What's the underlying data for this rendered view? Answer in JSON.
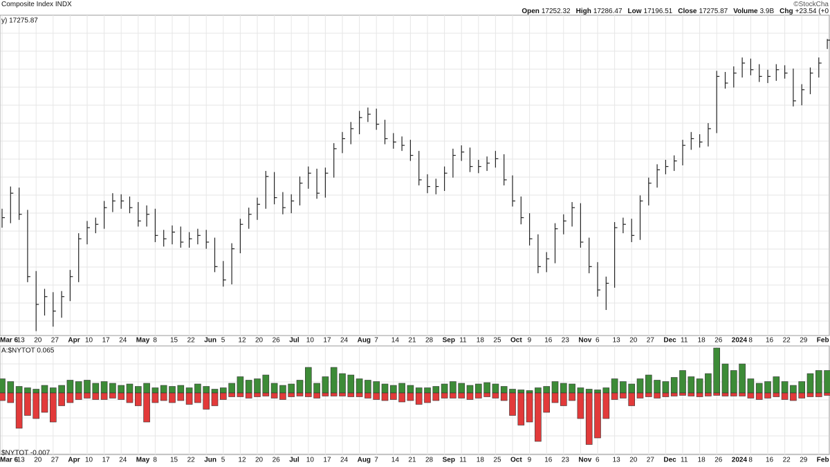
{
  "header": {
    "title": "Composite Index INDX",
    "credit": "©StockCha",
    "stats": [
      {
        "label": "Open",
        "value": "17252.32"
      },
      {
        "label": "High",
        "value": "17286.47"
      },
      {
        "label": "Low",
        "value": "17196.51"
      },
      {
        "label": "Close",
        "value": "17275.87"
      },
      {
        "label": "Volume",
        "value": "3.9B"
      },
      {
        "label": "Chg",
        "value": "+23.54 (+0"
      }
    ]
  },
  "chart_data": [
    {
      "type": "hlc",
      "label": "y) 17275.87",
      "color": "#222222",
      "ylim": [
        14620,
        17500
      ],
      "grid": true,
      "categories": [
        "Mar 6",
        null,
        "13",
        null,
        "20",
        null,
        "27",
        null,
        "Apr",
        null,
        "10",
        null,
        "17",
        null,
        "24",
        null,
        "May",
        null,
        "8",
        null,
        "15",
        null,
        "22",
        null,
        "Jun",
        null,
        "5",
        null,
        "12",
        null,
        "20",
        null,
        "26",
        null,
        "Jul",
        null,
        "10",
        null,
        "17",
        null,
        "24",
        null,
        "Aug",
        null,
        "7",
        null,
        "14",
        null,
        "21",
        null,
        "28",
        null,
        "Sep",
        null,
        "11",
        null,
        "18",
        null,
        "25",
        null,
        "Oct",
        null,
        "9",
        null,
        "16",
        null,
        "23",
        null,
        "Nov",
        null,
        "6",
        null,
        "13",
        null,
        "20",
        null,
        "27",
        null,
        "Dec",
        null,
        "11",
        null,
        "18",
        null,
        "26",
        null,
        "2024",
        null,
        "8",
        null,
        "16",
        null,
        "22",
        null,
        "29",
        null,
        "Feb",
        null
      ],
      "high": [
        15760,
        15960,
        15950,
        15750,
        15200,
        15040,
        15010,
        15020,
        15210,
        15540,
        15650,
        15680,
        15830,
        15900,
        15890,
        15870,
        15820,
        15790,
        15760,
        15570,
        15610,
        15600,
        15550,
        15580,
        15570,
        15500,
        15290,
        15450,
        15670,
        15770,
        15860,
        16100,
        16090,
        15910,
        15890,
        16050,
        16140,
        16120,
        16130,
        16350,
        16450,
        16540,
        16640,
        16670,
        16660,
        16560,
        16440,
        16410,
        16380,
        16280,
        16070,
        16030,
        16140,
        16300,
        16330,
        16310,
        16200,
        16230,
        16280,
        16250,
        16060,
        15870,
        15720,
        15530,
        15370,
        15630,
        15710,
        15820,
        15810,
        15500,
        15280,
        15150,
        15640,
        15680,
        15670,
        15880,
        16040,
        16160,
        16200,
        16240,
        16380,
        16450,
        16430,
        16530,
        17000,
        16990,
        17040,
        17120,
        17110,
        17060,
        17010,
        17060,
        17050,
        17020,
        16880,
        17030,
        17120,
        17286.47
      ],
      "low": [
        15590,
        15630,
        15660,
        15100,
        14660,
        14800,
        14700,
        14780,
        14930,
        15100,
        15440,
        15540,
        15580,
        15730,
        15760,
        15720,
        15600,
        15600,
        15460,
        15420,
        15440,
        15410,
        15410,
        15440,
        15400,
        15190,
        15060,
        15080,
        15360,
        15580,
        15660,
        15760,
        15800,
        15710,
        15720,
        15790,
        15940,
        15850,
        15860,
        16040,
        16260,
        16340,
        16430,
        16540,
        16470,
        16340,
        16300,
        16280,
        16190,
        15970,
        15900,
        15890,
        15920,
        16040,
        16190,
        16090,
        16080,
        16100,
        16130,
        15970,
        15780,
        15620,
        15430,
        15180,
        15190,
        15270,
        15530,
        15600,
        15410,
        15180,
        14970,
        14850,
        15050,
        15540,
        15460,
        15480,
        15790,
        15950,
        16070,
        16100,
        16150,
        16290,
        16310,
        16320,
        16440,
        16840,
        16850,
        16940,
        16960,
        16900,
        16890,
        16910,
        16930,
        16680,
        16690,
        16790,
        16940,
        17196.51
      ],
      "close": [
        15680,
        15900,
        15710,
        15150,
        14900,
        14970,
        14840,
        14970,
        15150,
        15490,
        15590,
        15620,
        15770,
        15830,
        15830,
        15770,
        15650,
        15710,
        15520,
        15490,
        15550,
        15460,
        15490,
        15520,
        15460,
        15240,
        15120,
        15400,
        15620,
        15710,
        15800,
        16050,
        15860,
        15770,
        15830,
        15990,
        16080,
        15900,
        16080,
        16300,
        16390,
        16480,
        16580,
        16610,
        16520,
        16390,
        16360,
        16330,
        16240,
        16020,
        15960,
        15960,
        16080,
        16240,
        16270,
        16140,
        16140,
        16170,
        16210,
        16020,
        15830,
        15680,
        15490,
        15240,
        15310,
        15580,
        15650,
        15770,
        15460,
        15240,
        15030,
        15090,
        15590,
        15620,
        15520,
        15830,
        15990,
        16110,
        16140,
        16190,
        16330,
        16390,
        16360,
        16480,
        16950,
        16890,
        16980,
        17070,
        17010,
        16950,
        16950,
        17010,
        16980,
        16730,
        16830,
        16980,
        17070,
        17275.87
      ]
    },
    {
      "type": "bar",
      "ylim": [
        -0.178,
        0.136
      ],
      "categories": [
        "Mar 6",
        null,
        "13",
        null,
        "20",
        null,
        "27",
        null,
        "Apr",
        null,
        "10",
        null,
        "17",
        null,
        "24",
        null,
        "May",
        null,
        "8",
        null,
        "15",
        null,
        "22",
        null,
        "Jun",
        null,
        "5",
        null,
        "12",
        null,
        "20",
        null,
        "26",
        null,
        "Jul",
        null,
        "10",
        null,
        "17",
        null,
        "24",
        null,
        "Aug",
        null,
        "7",
        null,
        "14",
        null,
        "21",
        null,
        "28",
        null,
        "Sep",
        null,
        "11",
        null,
        "18",
        null,
        "25",
        null,
        "Oct",
        null,
        "9",
        null,
        "16",
        null,
        "23",
        null,
        "Nov",
        null,
        "6",
        null,
        "13",
        null,
        "20",
        null,
        "27",
        null,
        "Dec",
        null,
        "11",
        null,
        "18",
        null,
        "26",
        null,
        "2024",
        null,
        "8",
        null,
        "16",
        null,
        "22",
        null,
        "29",
        null,
        "Feb",
        null
      ],
      "series": [
        {
          "name": "A:$NYTOT 0.065",
          "color": "#3d8b37",
          "values": [
            0.041,
            0.033,
            0.019,
            0.015,
            0.011,
            0.022,
            0.015,
            0.022,
            0.037,
            0.033,
            0.037,
            0.028,
            0.033,
            0.028,
            0.022,
            0.026,
            0.019,
            0.028,
            0.015,
            0.022,
            0.019,
            0.022,
            0.015,
            0.026,
            0.019,
            0.011,
            0.015,
            0.028,
            0.047,
            0.037,
            0.041,
            0.052,
            0.028,
            0.022,
            0.026,
            0.037,
            0.074,
            0.028,
            0.047,
            0.074,
            0.056,
            0.052,
            0.041,
            0.037,
            0.033,
            0.026,
            0.022,
            0.028,
            0.022,
            0.015,
            0.015,
            0.019,
            0.026,
            0.033,
            0.028,
            0.022,
            0.026,
            0.03,
            0.026,
            0.019,
            0.011,
            0.009,
            0.007,
            0.015,
            0.019,
            0.033,
            0.028,
            0.026,
            0.015,
            0.011,
            0.009,
            0.015,
            0.041,
            0.033,
            0.026,
            0.041,
            0.052,
            0.037,
            0.033,
            0.045,
            0.065,
            0.047,
            0.041,
            0.056,
            0.13,
            0.084,
            0.065,
            0.084,
            0.041,
            0.028,
            0.033,
            0.047,
            0.033,
            0.022,
            0.033,
            0.056,
            0.065,
            0.065
          ]
        },
        {
          "name": "$NYTOT -0.007",
          "color": "#e23a3a",
          "values": [
            -0.022,
            -0.028,
            -0.102,
            -0.065,
            -0.074,
            -0.056,
            -0.084,
            -0.037,
            -0.028,
            -0.019,
            -0.015,
            -0.019,
            -0.019,
            -0.015,
            -0.019,
            -0.028,
            -0.037,
            -0.084,
            -0.028,
            -0.022,
            -0.028,
            -0.022,
            -0.033,
            -0.028,
            -0.047,
            -0.037,
            -0.019,
            -0.011,
            -0.011,
            -0.015,
            -0.011,
            -0.009,
            -0.015,
            -0.019,
            -0.011,
            -0.009,
            -0.011,
            -0.015,
            -0.009,
            -0.009,
            -0.009,
            -0.011,
            -0.011,
            -0.015,
            -0.019,
            -0.022,
            -0.019,
            -0.026,
            -0.022,
            -0.033,
            -0.028,
            -0.022,
            -0.015,
            -0.015,
            -0.015,
            -0.019,
            -0.015,
            -0.011,
            -0.015,
            -0.022,
            -0.065,
            -0.093,
            -0.084,
            -0.14,
            -0.056,
            -0.028,
            -0.037,
            -0.022,
            -0.074,
            -0.149,
            -0.13,
            -0.074,
            -0.019,
            -0.015,
            -0.037,
            -0.015,
            -0.011,
            -0.015,
            -0.011,
            -0.009,
            -0.007,
            -0.009,
            -0.011,
            -0.009,
            -0.007,
            -0.009,
            -0.009,
            -0.009,
            -0.015,
            -0.019,
            -0.015,
            -0.011,
            -0.019,
            -0.022,
            -0.015,
            -0.011,
            -0.011,
            -0.007
          ]
        }
      ]
    }
  ]
}
